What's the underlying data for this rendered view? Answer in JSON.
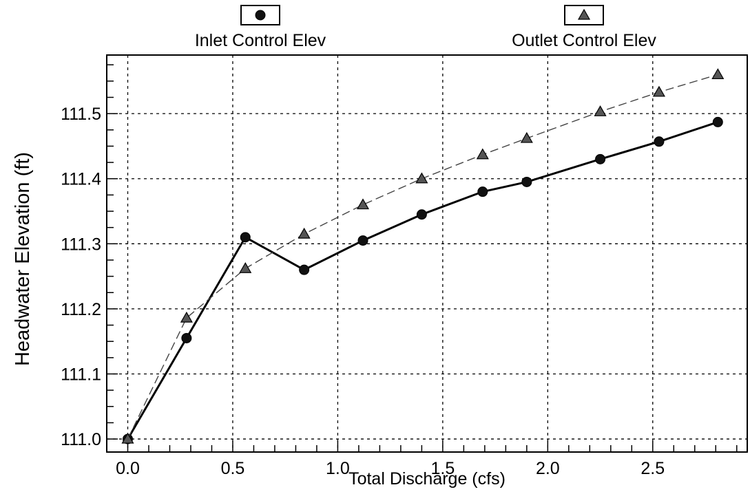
{
  "chart_data": {
    "type": "line",
    "title": "",
    "xlabel": "Total Discharge (cfs)",
    "ylabel": "Headwater Elevation (ft)",
    "xlim": [
      -0.1,
      2.95
    ],
    "ylim": [
      110.98,
      111.59
    ],
    "x_ticks": [
      0.0,
      0.5,
      1.0,
      1.5,
      2.0,
      2.5
    ],
    "x_tick_labels": [
      "0.0",
      "0.5",
      "1.0",
      "1.5",
      "2.0",
      "2.5"
    ],
    "y_ticks": [
      111.0,
      111.1,
      111.2,
      111.3,
      111.4,
      111.5
    ],
    "y_tick_labels": [
      "111.0",
      "111.1",
      "111.2",
      "111.3",
      "111.4",
      "111.5"
    ],
    "grid": true,
    "legend_position": "top",
    "series": [
      {
        "name": "Inlet Control Elev",
        "marker": "circle",
        "line_style": "solid",
        "color": "#000000",
        "x": [
          0.0,
          0.28,
          0.56,
          0.84,
          1.12,
          1.4,
          1.69,
          1.9,
          2.25,
          2.53,
          2.81
        ],
        "y": [
          111.0,
          111.155,
          111.31,
          111.26,
          111.305,
          111.345,
          111.38,
          111.395,
          111.43,
          111.457,
          111.487
        ]
      },
      {
        "name": "Outlet Control Elev",
        "marker": "triangle",
        "line_style": "dashed",
        "color": "#555555",
        "x": [
          0.0,
          0.28,
          0.56,
          0.84,
          1.12,
          1.4,
          1.69,
          1.9,
          2.25,
          2.53,
          2.81
        ],
        "y": [
          111.0,
          111.186,
          111.262,
          111.315,
          111.36,
          111.4,
          111.437,
          111.462,
          111.503,
          111.533,
          111.56
        ]
      }
    ]
  }
}
